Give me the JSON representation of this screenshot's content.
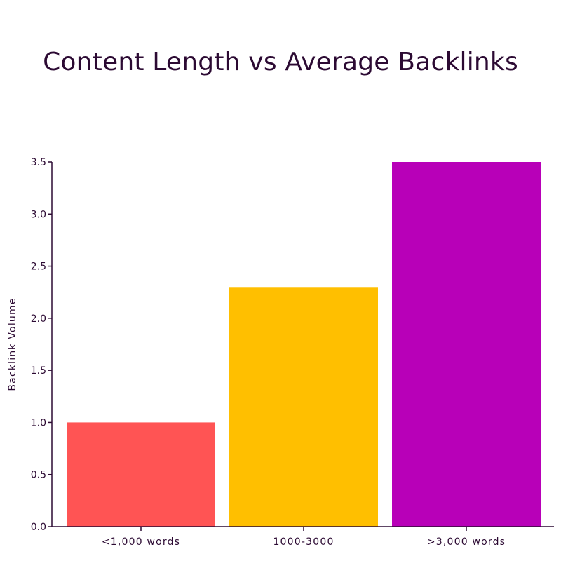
{
  "chart_data": {
    "type": "bar",
    "title": "Content Length vs Average Backlinks",
    "xlabel": "",
    "ylabel": "Backlink Volume",
    "categories": [
      "<1,000 words",
      "1000-3000",
      ">3,000 words"
    ],
    "values": [
      1.0,
      2.3,
      3.5
    ],
    "colors": [
      "#ff5454",
      "#ffbf00",
      "#b800b8"
    ],
    "ylim": [
      0,
      3.5
    ],
    "yticks": [
      "0.0",
      "0.5",
      "1.0",
      "1.5",
      "2.0",
      "2.5",
      "3.0",
      "3.5"
    ],
    "grid": false,
    "legend": "none"
  }
}
